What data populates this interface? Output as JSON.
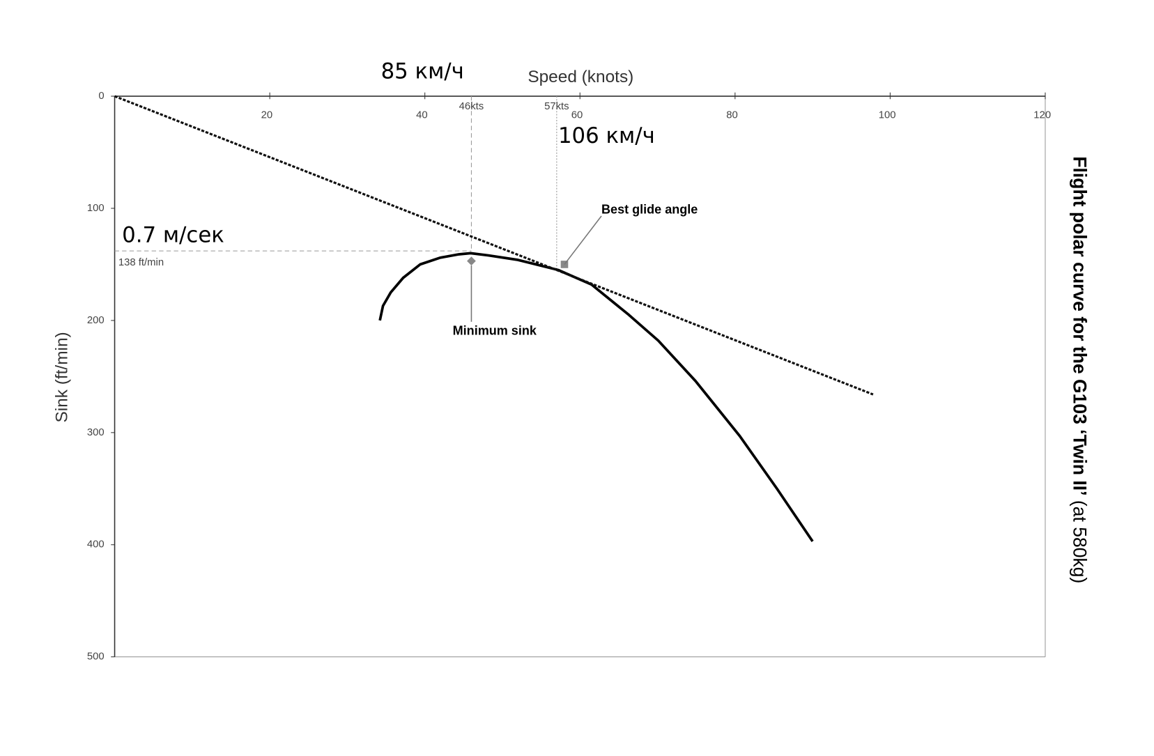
{
  "chart_data": {
    "type": "line",
    "title": "Flight polar curve for the G103 ‘Twin II’",
    "subtitle": "(at 580kg)",
    "x_label": "Speed (knots)",
    "y_label": "Sink (ft/min)",
    "xlim": [
      0,
      120
    ],
    "ylim": [
      0,
      500
    ],
    "y_inverted": true,
    "x_axis_position": "top",
    "xticks": [
      20,
      40,
      60,
      80,
      100,
      120
    ],
    "yticks": [
      0,
      100,
      200,
      300,
      400,
      500
    ],
    "series": [
      {
        "color": "#000000",
        "dash": false,
        "x": [
          34.2,
          34.6,
          35.6,
          37.2,
          39.4,
          42,
          44.4,
          45.9,
          48.2,
          52,
          57.2,
          61.5,
          66.3,
          70.1,
          74.9,
          80.6,
          85.4,
          90
        ],
        "values": [
          200,
          187,
          175,
          162,
          150,
          144,
          141,
          140,
          142,
          146,
          155,
          168,
          195,
          218,
          254,
          303,
          350,
          397
        ]
      },
      {
        "color": "#111111",
        "dash": true,
        "x": [
          0,
          97.8
        ],
        "values": [
          0,
          266
        ]
      }
    ],
    "markers": [
      {
        "label": "Minimum sink",
        "x": 46,
        "y": 147,
        "shape": "diamond"
      },
      {
        "label": "Best glide angle",
        "x": 58,
        "y": 150,
        "shape": "square"
      }
    ],
    "guides": [
      {
        "axis": "x",
        "value": 46,
        "label": "46kts",
        "note": "85 км/ч"
      },
      {
        "axis": "x",
        "value": 57,
        "label": "57kts",
        "note": "106 км/ч"
      },
      {
        "axis": "y",
        "value": 138,
        "label": "138 ft/min",
        "note": "0.7 м/сек"
      }
    ]
  }
}
